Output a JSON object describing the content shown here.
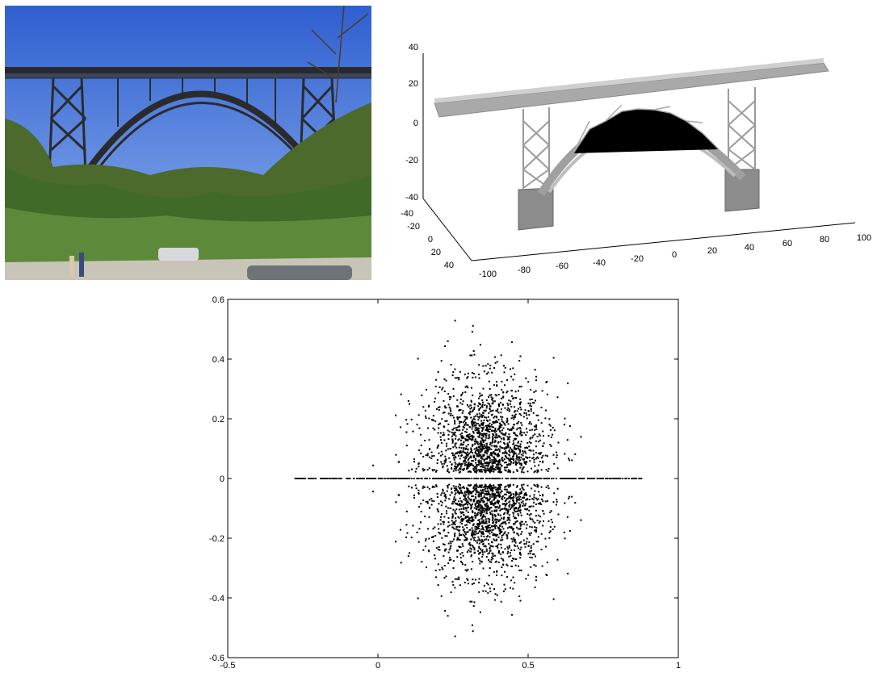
{
  "figure": {
    "photo": {
      "sky_color": "#3f6fd8",
      "foliage_color": "#3f6a28",
      "steel_color": "#2b2b2e"
    },
    "model": {
      "axis_ticks_z": [
        "40",
        "20",
        "0",
        "-20",
        "-40"
      ],
      "axis_ticks_y": [
        "-40",
        "-20",
        "0",
        "20",
        "40"
      ],
      "axis_ticks_x": [
        "-100",
        "-80",
        "-60",
        "-40",
        "-20",
        "0",
        "20",
        "40",
        "60",
        "80",
        "100"
      ],
      "model_color": "#c8c8c8"
    }
  },
  "chart_data": {
    "type": "scatter",
    "xlim": [
      -0.5,
      1
    ],
    "ylim": [
      -0.6,
      0.6
    ],
    "x_ticks": [
      "-0.5",
      "0",
      "0.5",
      "1"
    ],
    "y_ticks": [
      "0.6",
      "0.4",
      "0.2",
      "0",
      "-0.2",
      "-0.4",
      "-0.6"
    ],
    "grid": false,
    "marker_color": "#000000",
    "description_points": {
      "real_axis_range": [
        -0.28,
        0.88
      ],
      "cloud_center_x": 0.36,
      "cloud_x_spread": 0.1,
      "cloud_y_max": 0.58
    }
  }
}
